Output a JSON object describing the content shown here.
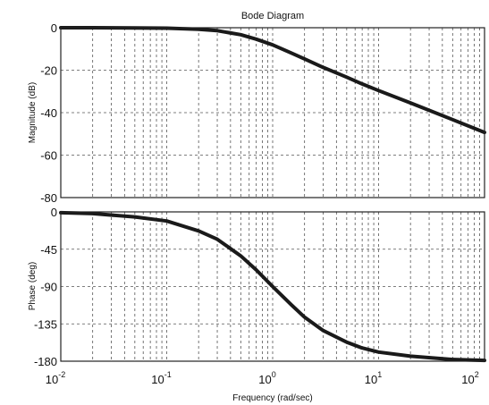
{
  "chart_data": [
    {
      "type": "line",
      "title": "Bode Diagram",
      "xlabel": "",
      "ylabel": "Magnitude (dB)",
      "xscale": "log",
      "xlim": [
        0.01,
        100
      ],
      "ylim": [
        -80,
        0
      ],
      "yticks": [
        "0",
        "-20",
        "-40",
        "-60",
        "-80"
      ],
      "grid": true,
      "series": [
        {
          "x": [
            0.01,
            0.02,
            0.05,
            0.1,
            0.2,
            0.3,
            0.5,
            0.7,
            1,
            1.5,
            2,
            3,
            5,
            7,
            10,
            20,
            50,
            100
          ],
          "values": [
            0,
            0,
            -0.1,
            -0.2,
            -0.7,
            -1.4,
            -3.3,
            -5.4,
            -8.1,
            -11.9,
            -14.7,
            -18.7,
            -23.3,
            -26.5,
            -29.6,
            -35.4,
            -43.3,
            -49.3
          ]
        }
      ]
    },
    {
      "type": "line",
      "title": "",
      "xlabel": "Frequency (rad/sec)",
      "ylabel": "Phase (deg)",
      "xscale": "log",
      "xlim": [
        0.01,
        100
      ],
      "ylim": [
        -180,
        0
      ],
      "yticks": [
        "0",
        "-45",
        "-90",
        "-135",
        "-180"
      ],
      "grid": true,
      "series": [
        {
          "x": [
            0.01,
            0.02,
            0.05,
            0.1,
            0.2,
            0.3,
            0.5,
            0.7,
            1,
            1.5,
            2,
            3,
            5,
            7,
            10,
            20,
            50,
            100
          ],
          "values": [
            -1,
            -2,
            -6,
            -11,
            -23,
            -33,
            -53,
            -70,
            -90,
            -112,
            -127,
            -143,
            -157,
            -164,
            -169,
            -174,
            -178,
            -179
          ]
        }
      ]
    }
  ],
  "xticks": [
    {
      "base": "10",
      "exp": "-2"
    },
    {
      "base": "10",
      "exp": "-1"
    },
    {
      "base": "10",
      "exp": "0"
    },
    {
      "base": "10",
      "exp": "1"
    },
    {
      "base": "10",
      "exp": "2"
    }
  ]
}
